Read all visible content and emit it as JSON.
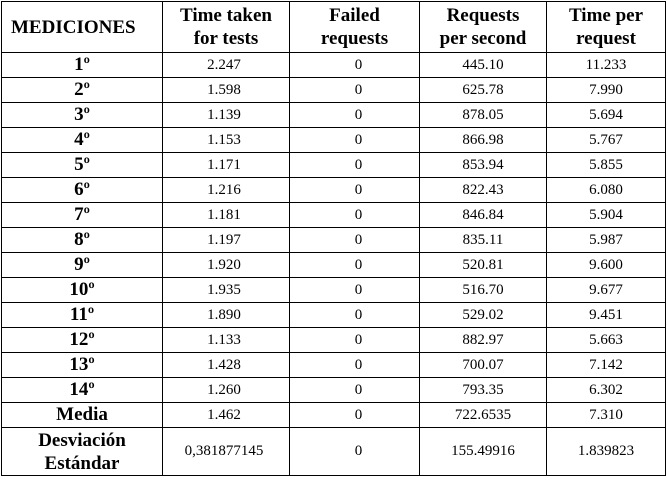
{
  "table": {
    "headers": {
      "mediciones": "MEDICIONES",
      "time_taken": [
        "Time taken",
        "for tests"
      ],
      "failed": [
        "Failed",
        "requests"
      ],
      "rps": [
        "Requests",
        "per second"
      ],
      "tpr": [
        "Time per",
        "request"
      ]
    },
    "rows": [
      {
        "label": "1º",
        "time_taken": "2.247",
        "failed": "0",
        "rps": "445.10",
        "tpr": "11.233"
      },
      {
        "label": "2º",
        "time_taken": "1.598",
        "failed": "0",
        "rps": "625.78",
        "tpr": "7.990"
      },
      {
        "label": "3º",
        "time_taken": "1.139",
        "failed": "0",
        "rps": "878.05",
        "tpr": "5.694"
      },
      {
        "label": "4º",
        "time_taken": "1.153",
        "failed": "0",
        "rps": "866.98",
        "tpr": "5.767"
      },
      {
        "label": "5º",
        "time_taken": "1.171",
        "failed": "0",
        "rps": "853.94",
        "tpr": "5.855"
      },
      {
        "label": "6º",
        "time_taken": "1.216",
        "failed": "0",
        "rps": "822.43",
        "tpr": "6.080"
      },
      {
        "label": "7º",
        "time_taken": "1.181",
        "failed": "0",
        "rps": "846.84",
        "tpr": "5.904"
      },
      {
        "label": "8º",
        "time_taken": "1.197",
        "failed": "0",
        "rps": "835.11",
        "tpr": "5.987"
      },
      {
        "label": "9º",
        "time_taken": "1.920",
        "failed": "0",
        "rps": "520.81",
        "tpr": "9.600"
      },
      {
        "label": "10º",
        "time_taken": "1.935",
        "failed": "0",
        "rps": "516.70",
        "tpr": "9.677"
      },
      {
        "label": "11º",
        "time_taken": "1.890",
        "failed": "0",
        "rps": "529.02",
        "tpr": "9.451"
      },
      {
        "label": "12º",
        "time_taken": "1.133",
        "failed": "0",
        "rps": "882.97",
        "tpr": "5.663"
      },
      {
        "label": "13º",
        "time_taken": "1.428",
        "failed": "0",
        "rps": "700.07",
        "tpr": "7.142"
      },
      {
        "label": "14º",
        "time_taken": "1.260",
        "failed": "0",
        "rps": "793.35",
        "tpr": "6.302"
      }
    ],
    "media": {
      "label": "Media",
      "time_taken": "1.462",
      "failed": "0",
      "rps": "722.6535",
      "tpr": "7.310"
    },
    "desviacion": {
      "label": [
        "Desviación",
        "Estándar"
      ],
      "time_taken": "0,381877145",
      "failed": "0",
      "rps": "155.49916",
      "tpr": "1.839823"
    }
  }
}
